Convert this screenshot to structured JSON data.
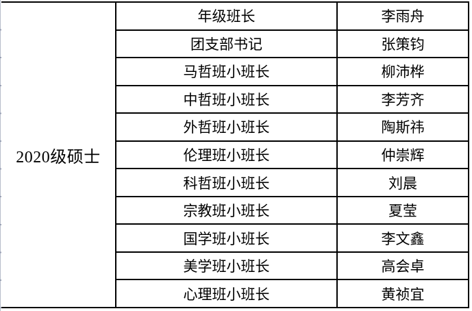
{
  "table": {
    "group_label": "2020级硕士",
    "border_color": "#000000",
    "edge_gridline_color": "#b6bcca",
    "rows": [
      {
        "role": "年级班长",
        "name": "李雨舟"
      },
      {
        "role": "团支部书记",
        "name": "张策钧"
      },
      {
        "role": "马哲班小班长",
        "name": "柳沛桦"
      },
      {
        "role": "中哲班小班长",
        "name": "李芳齐"
      },
      {
        "role": "外哲班小班长",
        "name": "陶斯祎"
      },
      {
        "role": "伦理班小班长",
        "name": "仲崇辉"
      },
      {
        "role": "科哲班小班长",
        "name": "刘晨"
      },
      {
        "role": "宗教班小班长",
        "name": "夏莹"
      },
      {
        "role": "国学班小班长",
        "name": "李文鑫"
      },
      {
        "role": "美学班小班长",
        "name": "高会卓"
      },
      {
        "role": "心理班小班长",
        "name": "黄祯宜"
      }
    ]
  }
}
